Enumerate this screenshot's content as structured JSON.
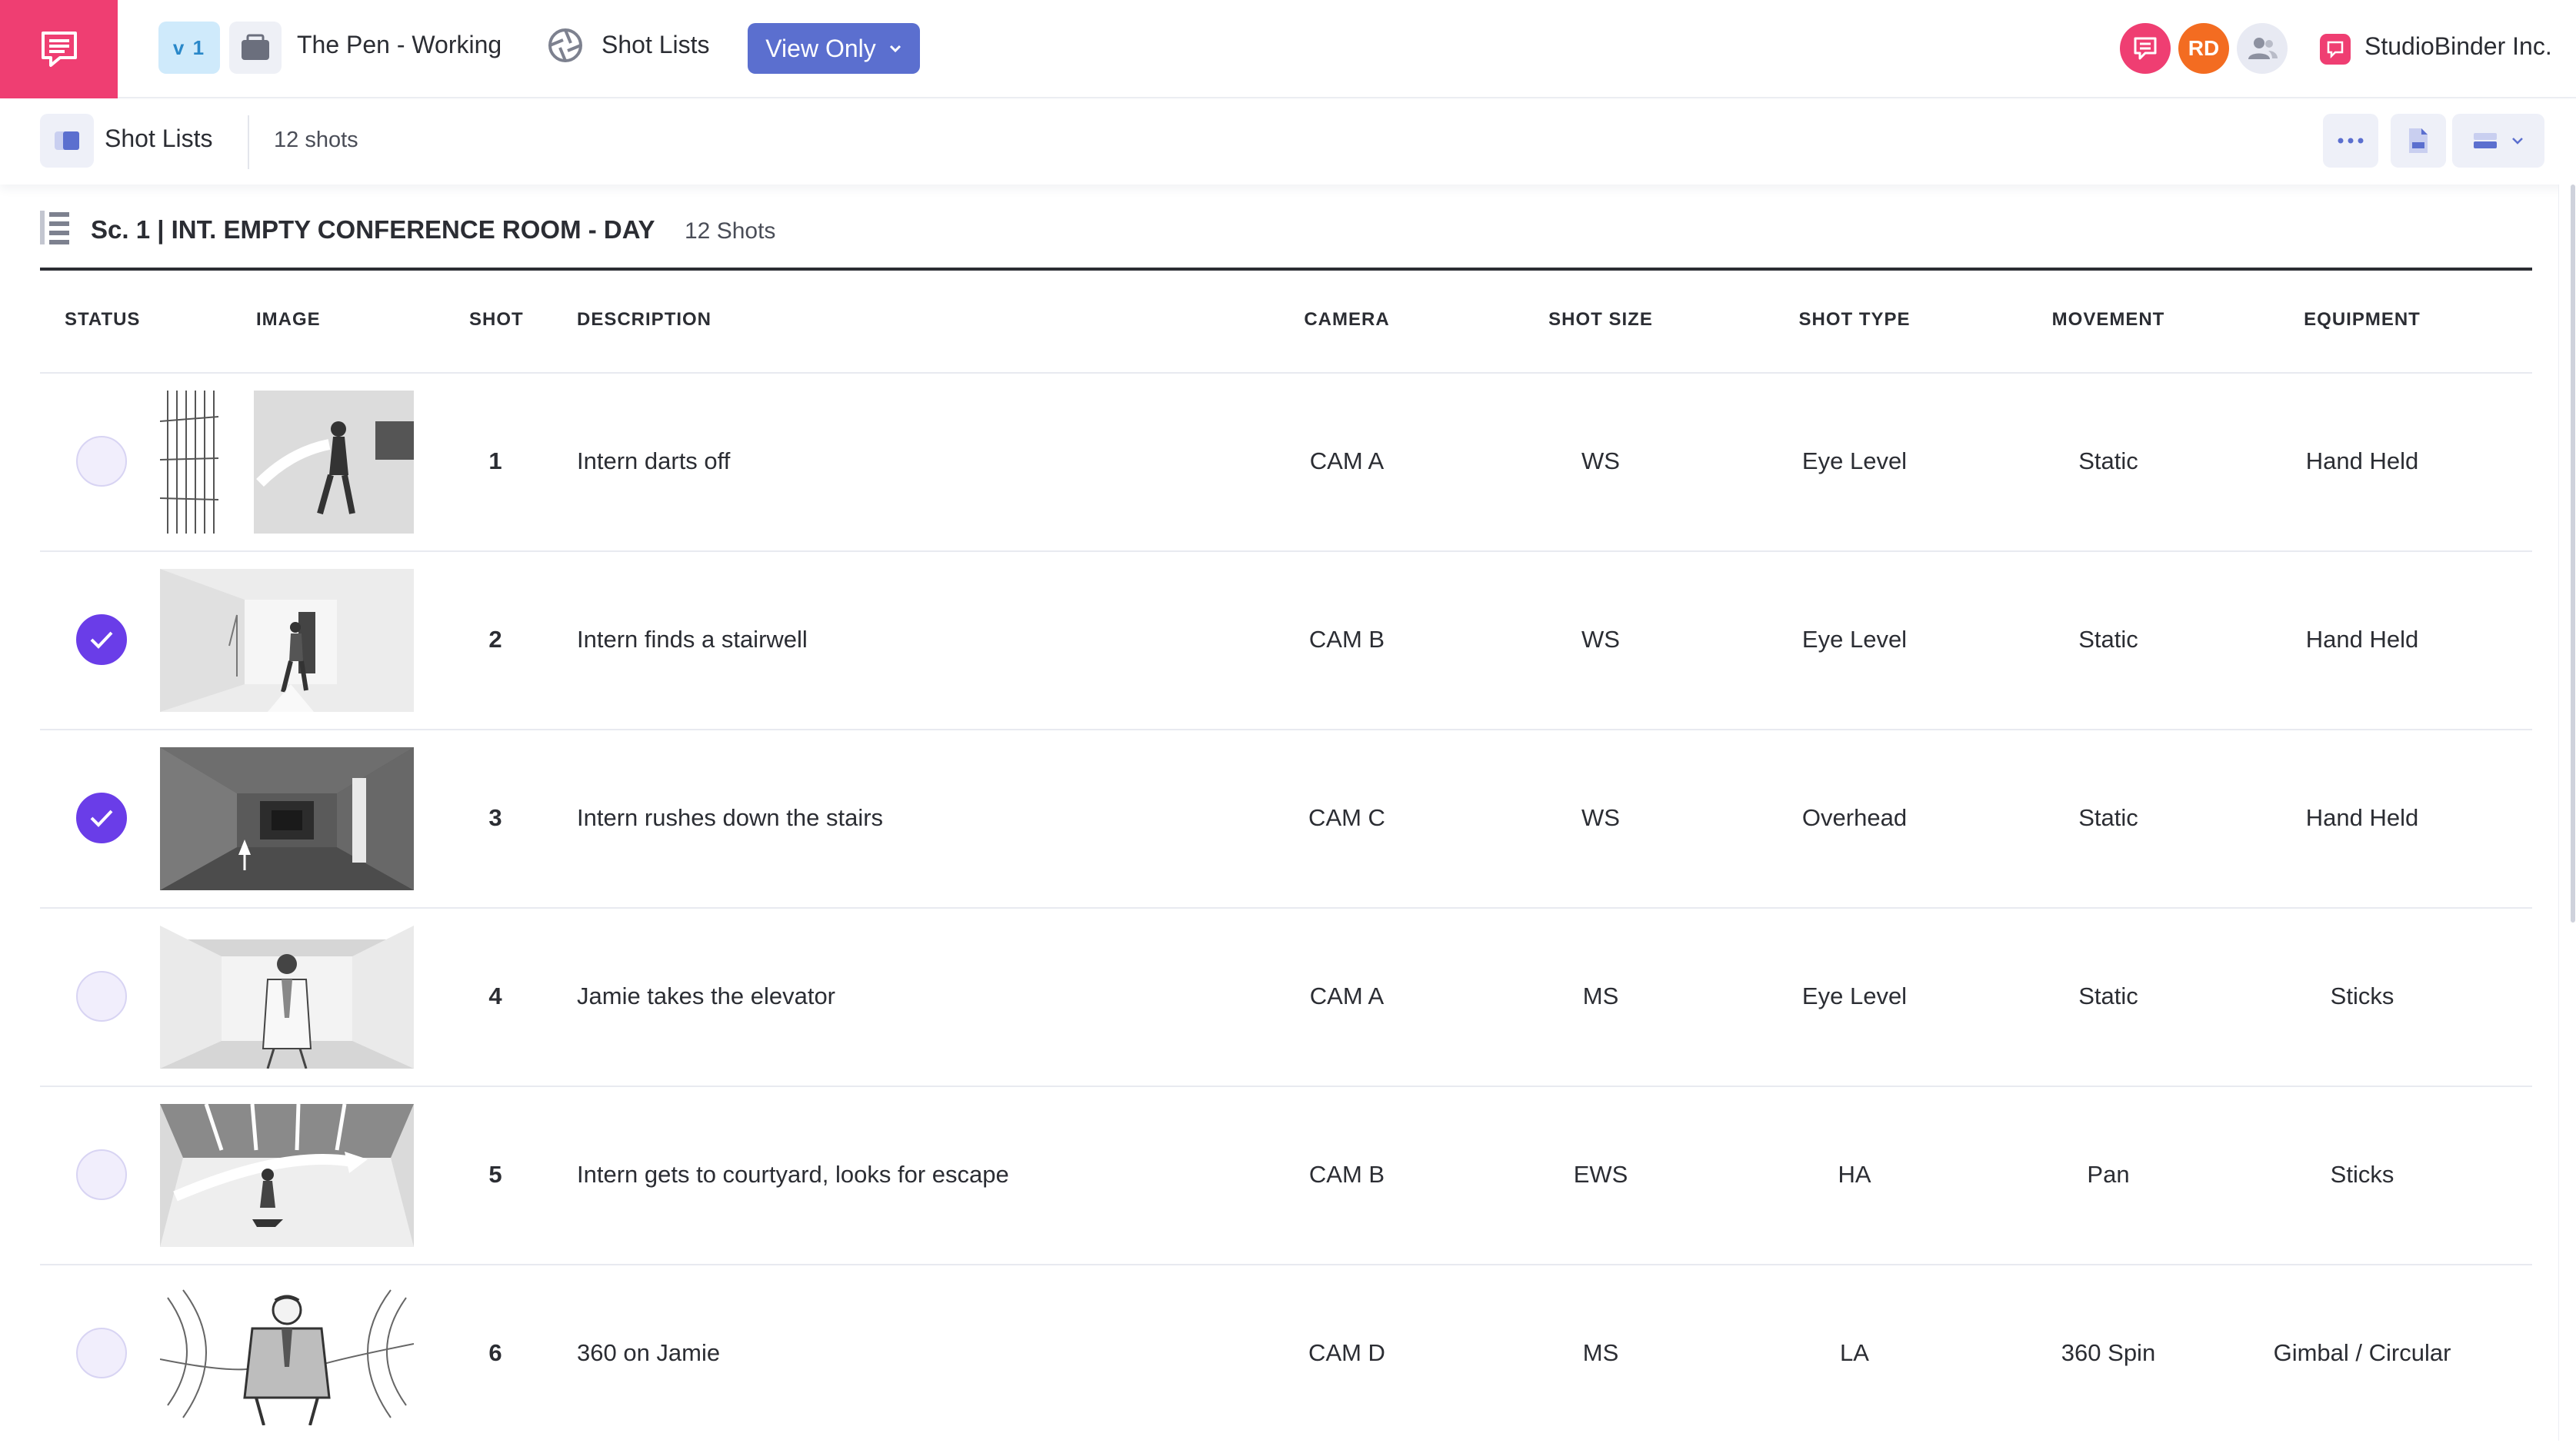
{
  "topbar": {
    "version": "v 1",
    "project": "The Pen - Working",
    "section": "Shot Lists",
    "view_mode": "View Only",
    "avatar_initials": "RD",
    "company": "StudioBinder Inc."
  },
  "subbar": {
    "title": "Shot Lists",
    "count": "12 shots"
  },
  "scene": {
    "title": "Sc. 1 | INT. EMPTY CONFERENCE ROOM - DAY",
    "count": "12 Shots"
  },
  "columns": {
    "status": "STATUS",
    "image": "IMAGE",
    "shot": "SHOT",
    "description": "DESCRIPTION",
    "camera": "CAMERA",
    "shot_size": "SHOT SIZE",
    "shot_type": "SHOT TYPE",
    "movement": "MOVEMENT",
    "equipment": "EQUIPMENT"
  },
  "rows": [
    {
      "done": false,
      "shot": "1",
      "description": "Intern darts off",
      "camera": "CAM A",
      "shot_size": "WS",
      "shot_type": "Eye Level",
      "movement": "Static",
      "equipment": "Hand Held",
      "image": "storyboard-intern-running"
    },
    {
      "done": true,
      "shot": "2",
      "description": "Intern finds a stairwell",
      "camera": "CAM B",
      "shot_size": "WS",
      "shot_type": "Eye Level",
      "movement": "Static",
      "equipment": "Hand Held",
      "image": "storyboard-stairwell-door"
    },
    {
      "done": true,
      "shot": "3",
      "description": "Intern rushes down the stairs",
      "camera": "CAM C",
      "shot_size": "WS",
      "shot_type": "Overhead",
      "movement": "Static",
      "equipment": "Hand Held",
      "image": "storyboard-overhead-stairs"
    },
    {
      "done": false,
      "shot": "4",
      "description": "Jamie takes the elevator",
      "camera": "CAM A",
      "shot_size": "MS",
      "shot_type": "Eye Level",
      "movement": "Static",
      "equipment": "Sticks",
      "image": "storyboard-elevator"
    },
    {
      "done": false,
      "shot": "5",
      "description": "Intern gets to courtyard, looks for escape",
      "camera": "CAM B",
      "shot_size": "EWS",
      "shot_type": "HA",
      "movement": "Pan",
      "equipment": "Sticks",
      "image": "storyboard-courtyard"
    },
    {
      "done": false,
      "shot": "6",
      "description": "360 on Jamie",
      "camera": "CAM D",
      "shot_size": "MS",
      "shot_type": "LA",
      "movement": "360 Spin",
      "equipment": "Gimbal / Circular",
      "image": "storyboard-360-spin"
    }
  ],
  "colors": {
    "brand": "#ef3e72",
    "primary_button": "#5b6fcf",
    "status_done": "#6a3de8",
    "status_todo": "#f1eefc",
    "avatar_orange": "#f36c21"
  }
}
